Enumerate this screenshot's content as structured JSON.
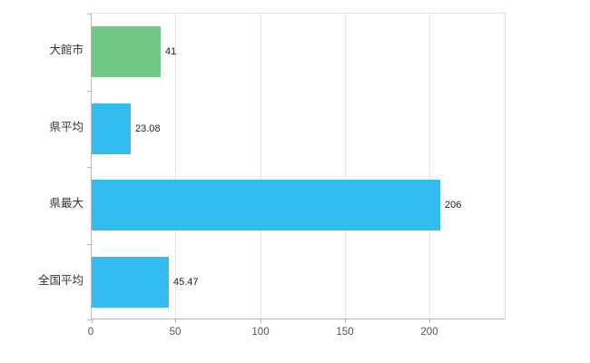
{
  "chart_data": {
    "type": "bar",
    "orientation": "horizontal",
    "title": "",
    "xlabel": "",
    "ylabel": "",
    "categories": [
      "大館市",
      "県平均",
      "県最大",
      "全国平均"
    ],
    "values": [
      41,
      23.08,
      206,
      45.47
    ],
    "value_labels": [
      "41",
      "23.08",
      "206",
      "45.47"
    ],
    "bar_colors": [
      "#6fc983",
      "#32bcf0",
      "#32bcf0",
      "#32bcf0"
    ],
    "xlim": [
      0,
      245
    ],
    "xticks": [
      0,
      50,
      100,
      150,
      200
    ],
    "xtick_labels": [
      "0",
      "50",
      "100",
      "150",
      "200"
    ],
    "grid": true,
    "legend": "none",
    "colors": {
      "axis": "#b8b8b8",
      "gridline": "#e8e8e8",
      "plot_border": "#e3e3e3",
      "text": "#333333",
      "background": "#ffffff"
    }
  }
}
